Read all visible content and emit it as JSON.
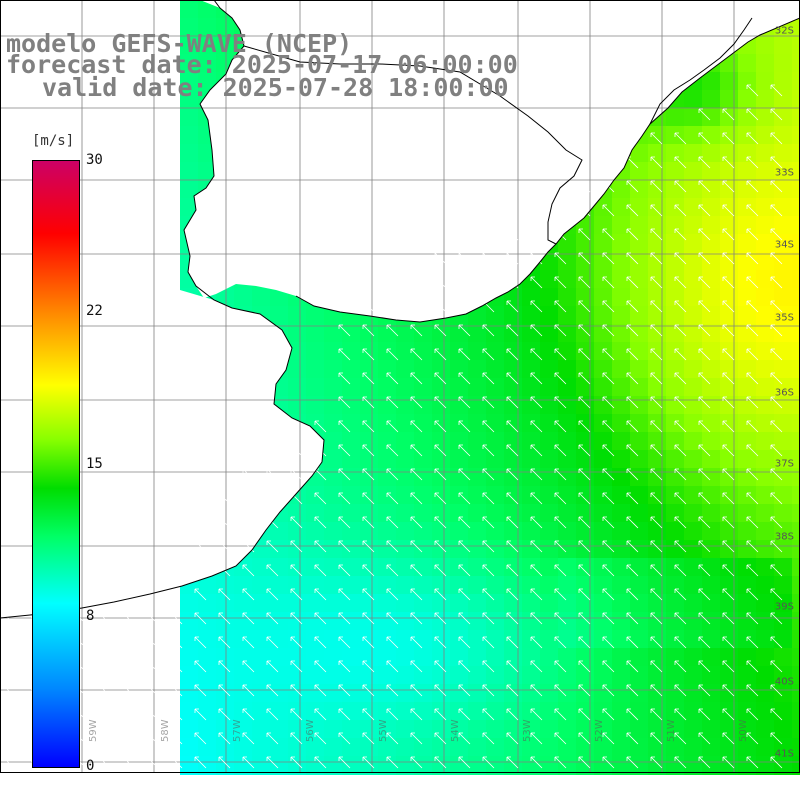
{
  "title": {
    "line1": "modelo GEFS-WAVE (NCEP)",
    "line2": "forecast date: 2025-07-17 06:00:00",
    "line3": "valid date: 2025-07-28 18:00:00"
  },
  "colorbar": {
    "unit": "[m/s]",
    "ticks": [
      "30",
      "22",
      "15",
      "8",
      "0"
    ],
    "min": 0,
    "max": 30
  },
  "latitude_labels": [
    "32S",
    "33S",
    "34S",
    "35S",
    "36S",
    "37S",
    "38S",
    "39S",
    "40S",
    "41S"
  ],
  "longitude_labels": [
    "59W",
    "58W",
    "57W",
    "56W",
    "55W",
    "54W",
    "53W",
    "52W",
    "51W",
    "50W"
  ],
  "colors": {
    "land": "#ffffff",
    "coast": "#000000",
    "grid": "#808080",
    "arrows": "#ffffff",
    "title_text": "#808080"
  }
}
